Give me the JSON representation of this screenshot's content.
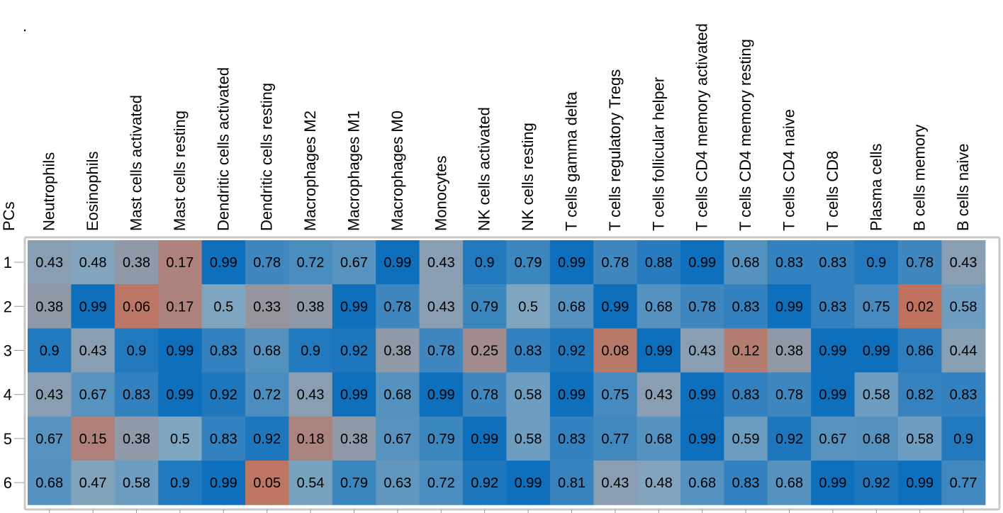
{
  "chart_data": {
    "type": "heatmap",
    "title": ".",
    "row_axis_label": "PCs",
    "rows": [
      "1",
      "2",
      "3",
      "4",
      "5",
      "6"
    ],
    "columns": [
      "Neutrophils",
      "Eosinophils",
      "Mast cells activated",
      "Mast cells resting",
      "Dendritic cells activated",
      "Dendritic cells resting",
      "Macrophages M2",
      "Macrophages M1",
      "Macrophages M0",
      "Monocytes",
      "NK cells activated",
      "NK cells resting",
      "T cells gamma delta",
      "T cells regulatory Tregs",
      "T cells follicular helper",
      "T cells CD4 memory activated",
      "T cells CD4 memory resting",
      "T cells CD4 naive",
      "T cells CD8",
      "Plasma cells",
      "B cells memory",
      "B cells naive"
    ],
    "values": [
      [
        "0.43",
        "0.48",
        "0.38",
        "0.17",
        "0.99",
        "0.78",
        "0.72",
        "0.67",
        "0.99",
        "0.43",
        "0.9",
        "0.79",
        "0.99",
        "0.78",
        "0.88",
        "0.99",
        "0.68",
        "0.83",
        "0.83",
        "0.9",
        "0.78",
        "0.43"
      ],
      [
        "0.38",
        "0.99",
        "0.06",
        "0.17",
        "0.5",
        "0.33",
        "0.38",
        "0.99",
        "0.78",
        "0.43",
        "0.79",
        "0.5",
        "0.68",
        "0.99",
        "0.68",
        "0.78",
        "0.83",
        "0.99",
        "0.83",
        "0.75",
        "0.02",
        "0.58"
      ],
      [
        "0.9",
        "0.43",
        "0.9",
        "0.99",
        "0.83",
        "0.68",
        "0.9",
        "0.92",
        "0.38",
        "0.78",
        "0.25",
        "0.83",
        "0.92",
        "0.08",
        "0.99",
        "0.43",
        "0.12",
        "0.38",
        "0.99",
        "0.99",
        "0.86",
        "0.44"
      ],
      [
        "0.43",
        "0.67",
        "0.83",
        "0.99",
        "0.92",
        "0.72",
        "0.43",
        "0.99",
        "0.68",
        "0.99",
        "0.78",
        "0.58",
        "0.99",
        "0.75",
        "0.43",
        "0.99",
        "0.83",
        "0.78",
        "0.99",
        "0.58",
        "0.82",
        "0.83"
      ],
      [
        "0.67",
        "0.15",
        "0.38",
        "0.5",
        "0.83",
        "0.92",
        "0.18",
        "0.38",
        "0.67",
        "0.79",
        "0.99",
        "0.58",
        "0.83",
        "0.77",
        "0.68",
        "0.99",
        "0.59",
        "0.92",
        "0.67",
        "0.68",
        "0.58",
        "0.9"
      ],
      [
        "0.68",
        "0.47",
        "0.58",
        "0.9",
        "0.99",
        "0.05",
        "0.54",
        "0.79",
        "0.63",
        "0.72",
        "0.92",
        "0.99",
        "0.81",
        "0.43",
        "0.48",
        "0.68",
        "0.83",
        "0.68",
        "0.99",
        "0.92",
        "0.99",
        "0.77"
      ]
    ],
    "color_scale": {
      "low": "#c4705a",
      "mid": "#7fa6c0",
      "high": "#0c6ebd"
    },
    "legend": "none",
    "grid": false
  }
}
